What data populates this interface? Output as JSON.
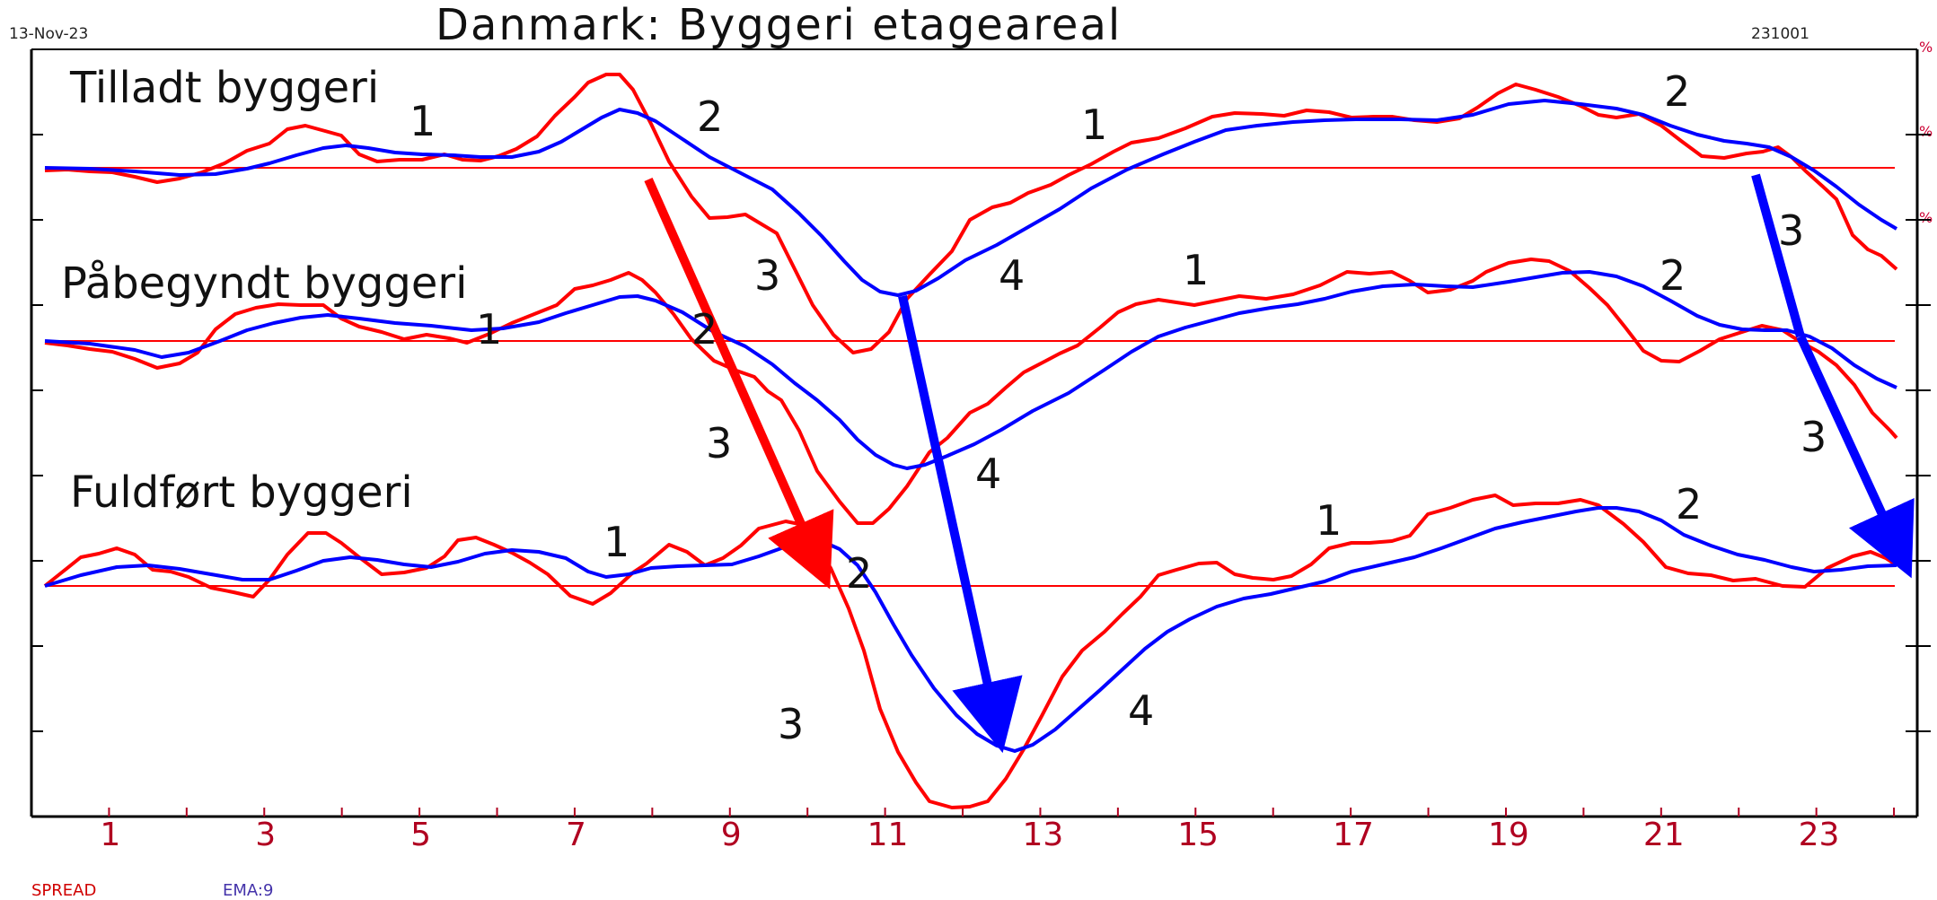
{
  "header": {
    "date": "13-Nov-23",
    "title": "Danmark: Byggeri etageareal",
    "code": "231001"
  },
  "legend": {
    "spread": "SPREAD",
    "ema": "EMA:9"
  },
  "right_axis_labels": [
    "%",
    "%",
    "%",
    "%"
  ],
  "colors": {
    "spread": "#ff0000",
    "ema": "#0000ff",
    "axis": "#000000",
    "tick": "#b00020"
  },
  "chart_data": {
    "type": "line",
    "x_range": [
      0,
      24.3
    ],
    "x_ticks": [
      1,
      3,
      5,
      7,
      9,
      11,
      13,
      15,
      17,
      19,
      21,
      23
    ],
    "x_tick_labels": [
      "1",
      "3",
      "5",
      "7",
      "9",
      "11",
      "13",
      "15",
      "17",
      "19",
      "21",
      "23"
    ],
    "y_range": [
      0,
      9
    ],
    "grid": false,
    "legend_position": "bottom-left",
    "panels": [
      {
        "label": "Tilladt byggeri",
        "baseline": 7.35,
        "spread": [
          [
            0.15,
            7.33
          ],
          [
            0.45,
            7.33
          ],
          [
            0.75,
            7.34
          ],
          [
            1.05,
            7.32
          ],
          [
            1.35,
            7.29
          ],
          [
            1.65,
            7.24
          ],
          [
            1.95,
            7.21
          ],
          [
            2.25,
            7.24
          ],
          [
            2.55,
            7.29
          ],
          [
            2.85,
            7.36
          ],
          [
            3.15,
            7.48
          ],
          [
            3.45,
            7.58
          ],
          [
            3.75,
            7.69
          ],
          [
            4.05,
            7.74
          ],
          [
            4.35,
            7.73
          ],
          [
            4.65,
            7.65
          ],
          [
            4.95,
            7.52
          ],
          [
            5.25,
            7.42
          ],
          [
            5.55,
            7.41
          ],
          [
            5.85,
            7.43
          ],
          [
            6.15,
            7.44
          ],
          [
            6.45,
            7.42
          ],
          [
            6.75,
            7.41
          ],
          [
            7.05,
            7.39
          ],
          [
            7.35,
            7.45
          ],
          [
            7.65,
            7.58
          ],
          [
            7.95,
            7.78
          ],
          [
            8.25,
            7.98
          ],
          [
            8.55,
            8.06
          ],
          [
            8.85,
            7.98
          ],
          [
            9.15,
            7.75
          ],
          [
            9.45,
            7.46
          ],
          [
            9.75,
            7.22
          ],
          [
            10.05,
            7.01
          ],
          [
            10.35,
            6.89
          ],
          [
            10.65,
            6.86
          ],
          [
            10.95,
            6.74
          ],
          [
            11.25,
            6.51
          ],
          [
            11.55,
            6.29
          ],
          [
            11.85,
            6.07
          ],
          [
            12.15,
            5.91
          ],
          [
            12.45,
            6.01
          ],
          [
            12.75,
            6.25
          ],
          [
            13.05,
            6.47
          ],
          [
            13.35,
            6.75
          ],
          [
            13.65,
            6.97
          ],
          [
            13.95,
            7.11
          ],
          [
            14.25,
            7.21
          ],
          [
            14.55,
            7.29
          ],
          [
            14.85,
            7.37
          ],
          [
            15.15,
            7.46
          ],
          [
            15.45,
            7.57
          ],
          [
            15.75,
            7.63
          ],
          [
            16.05,
            7.69
          ],
          [
            16.35,
            7.74
          ],
          [
            16.65,
            7.8
          ],
          [
            16.95,
            7.86
          ],
          [
            17.25,
            7.9
          ],
          [
            17.55,
            7.92
          ],
          [
            17.85,
            7.91
          ],
          [
            18.15,
            7.89
          ],
          [
            18.45,
            7.88
          ],
          [
            18.75,
            7.92
          ],
          [
            19.05,
            7.95
          ],
          [
            19.35,
            7.96
          ],
          [
            19.65,
            7.97
          ],
          [
            19.95,
            7.95
          ],
          [
            20.25,
            7.94
          ],
          [
            20.55,
            7.92
          ],
          [
            20.85,
            7.88
          ],
          [
            21.15,
            7.88
          ],
          [
            21.45,
            7.93
          ],
          [
            21.75,
            8.0
          ],
          [
            22.05,
            8.06
          ],
          [
            22.35,
            8.05
          ],
          [
            22.65,
            7.99
          ],
          [
            22.95,
            7.93
          ],
          [
            23.25,
            7.91
          ],
          [
            23.55,
            7.84
          ],
          [
            23.85,
            7.77
          ],
          [
            24.15,
            7.68
          ],
          [
            24.45,
            7.55
          ],
          [
            24.75,
            7.35
          ],
          [
            25.05,
            7.17
          ],
          [
            25.35,
            6.94
          ],
          [
            25.65,
            6.72
          ],
          [
            25.95,
            6.62
          ],
          [
            26.25,
            6.51
          ],
          [
            26.55,
            6.4
          ]
        ],
        "ema": [
          [
            0.15,
            7.35
          ],
          [
            0.8,
            7.35
          ],
          [
            1.5,
            7.3
          ],
          [
            2.2,
            7.32
          ],
          [
            2.9,
            7.4
          ],
          [
            3.6,
            7.5
          ],
          [
            4.3,
            7.55
          ],
          [
            5.0,
            7.51
          ],
          [
            5.7,
            7.48
          ],
          [
            6.4,
            7.45
          ],
          [
            7.1,
            7.42
          ],
          [
            7.8,
            7.5
          ],
          [
            8.4,
            7.66
          ],
          [
            8.9,
            7.68
          ],
          [
            9.4,
            7.52
          ],
          [
            9.9,
            7.3
          ],
          [
            10.5,
            7.07
          ],
          [
            11.1,
            6.84
          ],
          [
            11.7,
            6.58
          ],
          [
            12.2,
            6.33
          ],
          [
            12.6,
            6.26
          ],
          [
            13.1,
            6.3
          ],
          [
            13.8,
            6.45
          ],
          [
            14.5,
            6.64
          ],
          [
            15.2,
            6.86
          ],
          [
            15.9,
            7.08
          ],
          [
            16.6,
            7.26
          ],
          [
            17.3,
            7.45
          ],
          [
            18.0,
            7.6
          ],
          [
            18.7,
            7.73
          ],
          [
            19.4,
            7.79
          ],
          [
            20.1,
            7.81
          ],
          [
            20.8,
            7.82
          ],
          [
            21.5,
            7.83
          ],
          [
            22.2,
            7.89
          ],
          [
            22.9,
            7.95
          ],
          [
            23.6,
            7.93
          ],
          [
            24.3,
            7.88
          ],
          [
            25.0,
            7.74
          ],
          [
            25.6,
            7.64
          ],
          [
            26.1,
            7.59
          ],
          [
            26.55,
            7.48
          ]
        ]
      }
    ]
  },
  "panel_labels": [
    "Tilladt byggeri",
    "Påbegyndt byggeri",
    "Fuldført byggeri"
  ],
  "wave_labels": {
    "tilladt": [
      "1",
      "2",
      "3",
      "4",
      "1",
      "2",
      "3"
    ],
    "paabegyndt": [
      "1",
      "2",
      "3",
      "4",
      "1",
      "2",
      "3"
    ],
    "fuldfoert": [
      "1",
      "2",
      "3",
      "4",
      "1",
      "2"
    ]
  }
}
